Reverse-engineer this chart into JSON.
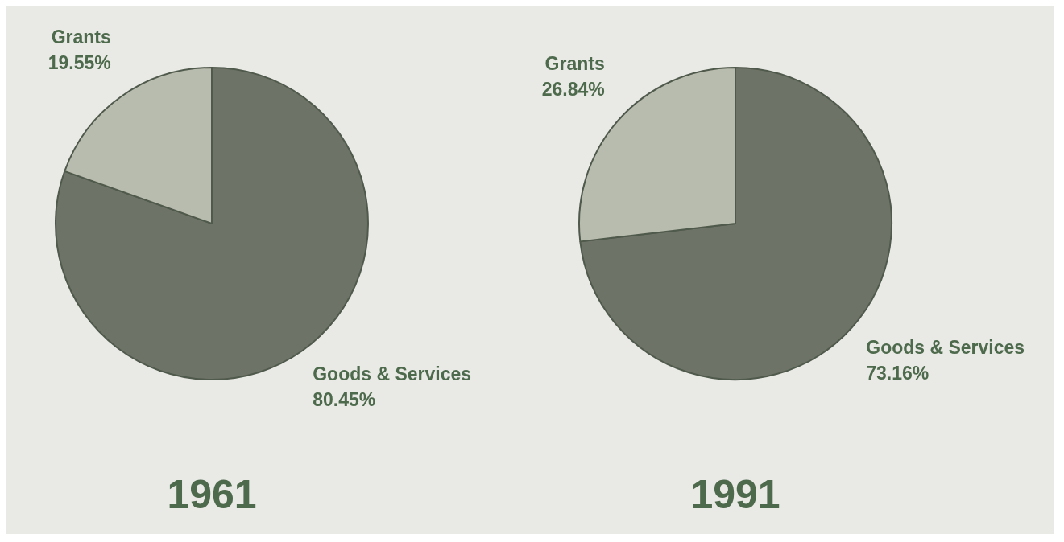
{
  "chart_data": [
    {
      "type": "pie",
      "title": "1961",
      "categories": [
        "Goods & Services",
        "Grants"
      ],
      "values": [
        80.45,
        19.55
      ],
      "colors": [
        "#6e7367",
        "#b8bcae"
      ],
      "value_labels": [
        "80.45%",
        "19.55%"
      ]
    },
    {
      "type": "pie",
      "title": "1991",
      "categories": [
        "Goods & Services",
        "Grants"
      ],
      "values": [
        73.16,
        26.84
      ],
      "colors": [
        "#6e7367",
        "#b8bcae"
      ],
      "value_labels": [
        "73.16%",
        "26.84%"
      ]
    }
  ]
}
